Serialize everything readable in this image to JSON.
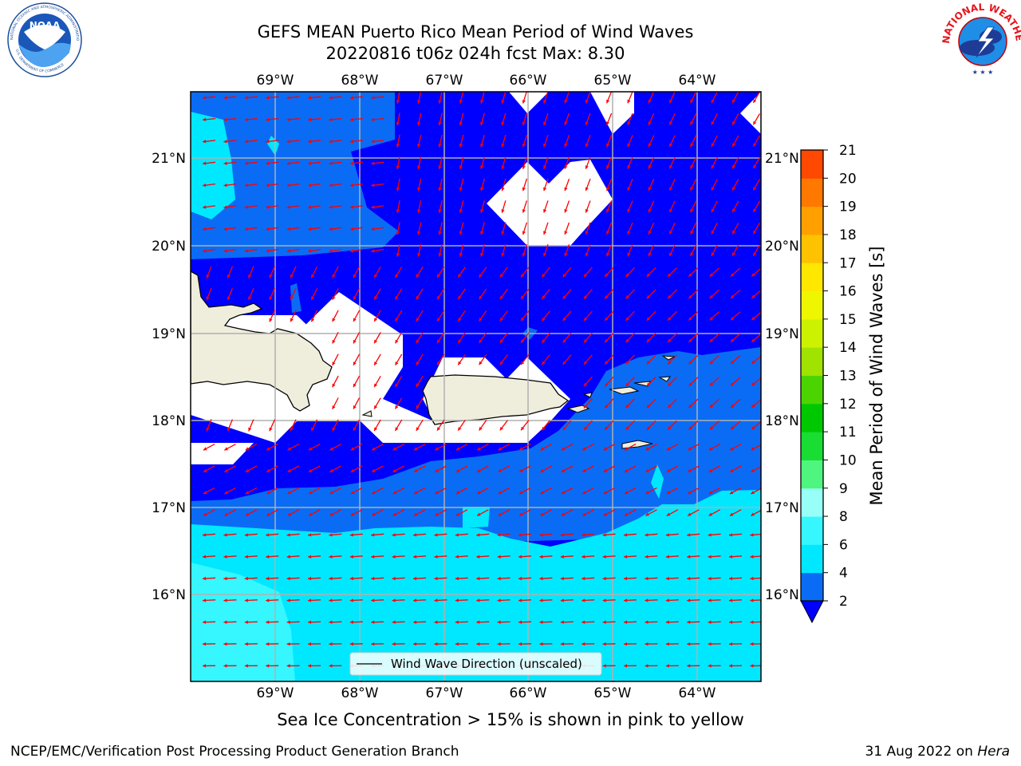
{
  "title": {
    "line1": "GEFS MEAN Puerto Rico Mean Period of Wind Waves",
    "line2": "20220816 t06z 024h fcst   Max: 8.30"
  },
  "map": {
    "lon_labels": [
      "69°W",
      "68°W",
      "67°W",
      "66°W",
      "65°W",
      "64°W"
    ],
    "lat_labels": [
      "21°N",
      "20°N",
      "19°N",
      "18°N",
      "17°N",
      "16°N"
    ],
    "legend_label": "Wind Wave Direction (unscaled)",
    "land_color": "#efeddc",
    "arrow_color": "#ff0000"
  },
  "colorbar": {
    "label": "Mean Period of Wind Waves [s]",
    "ticks": [
      "2",
      "4",
      "6",
      "8",
      "9",
      "10",
      "11",
      "12",
      "13",
      "14",
      "15",
      "16",
      "17",
      "18",
      "19",
      "20",
      "21"
    ],
    "colors": [
      "#0a6cf5",
      "#00e8ff",
      "#36f6ff",
      "#98fff8",
      "#4ef57e",
      "#19dd33",
      "#00c800",
      "#4cd400",
      "#a0e200",
      "#cdf200",
      "#eef700",
      "#ffe800",
      "#ffc200",
      "#ffa000",
      "#ff7800",
      "#ff4800"
    ],
    "under_color": "#0000ff"
  },
  "note": "Sea Ice Concentration > 15% is shown in pink to yellow",
  "footer": {
    "left": "NCEP/EMC/Verification Post Processing Product Generation Branch",
    "right_prefix": "31 Aug 2022 on ",
    "right_machine": "Hera"
  },
  "logos": {
    "noaa_text": "NOAA",
    "noaa_ring_top": "NATIONAL OCEANIC AND ATMOSPHERIC ADMINISTRATION",
    "noaa_ring_bottom": "U.S. DEPARTMENT OF COMMERCE",
    "nws_ring": "NATIONAL WEATHER SERVICE"
  }
}
